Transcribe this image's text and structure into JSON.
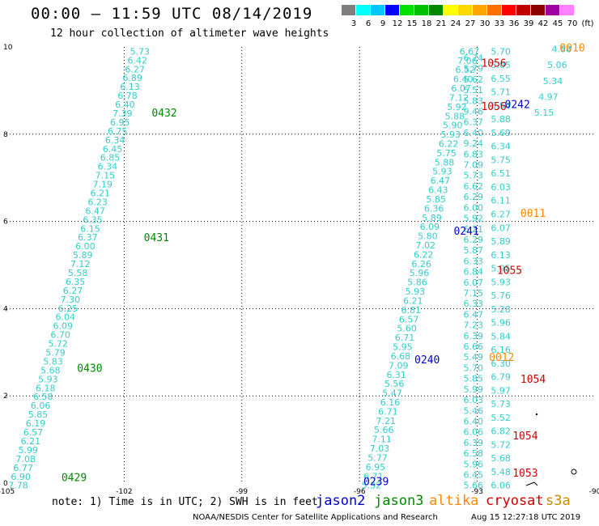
{
  "header": {
    "title": "00:00 – 11:59 UTC 08/14/2019",
    "subtitle": "12 hour collection of altimeter wave heights"
  },
  "legend": {
    "unit": "(ft)",
    "bins": [
      {
        "label": "3",
        "color": "#7f7f7f"
      },
      {
        "label": "6",
        "color": "#00ffff"
      },
      {
        "label": "9",
        "color": "#00c8ff"
      },
      {
        "label": "12",
        "color": "#0000ff"
      },
      {
        "label": "15",
        "color": "#00e000"
      },
      {
        "label": "18",
        "color": "#00c000"
      },
      {
        "label": "21",
        "color": "#008800"
      },
      {
        "label": "24",
        "color": "#ffff00"
      },
      {
        "label": "27",
        "color": "#ffd800"
      },
      {
        "label": "30",
        "color": "#ffa500"
      },
      {
        "label": "33",
        "color": "#ff7000"
      },
      {
        "label": "36",
        "color": "#ff0000"
      },
      {
        "label": "39",
        "color": "#c00000"
      },
      {
        "label": "42",
        "color": "#8b0000"
      },
      {
        "label": "45",
        "color": "#a000a0"
      },
      {
        "label": "70",
        "color": "#ff80ff"
      }
    ]
  },
  "map": {
    "lon_range": [
      -105,
      -90
    ],
    "lat_range": [
      0,
      10
    ],
    "x_ticks": [
      "-105",
      "-102",
      "-99",
      "-96",
      "-93",
      "-90"
    ],
    "y_ticks": [
      "10",
      "8",
      "6",
      "4",
      "2",
      "0"
    ],
    "colors": {
      "sample": "#33cccc",
      "jason2": "#0000cc",
      "jason3": "#008800",
      "altika": "#ff8800",
      "cryosat": "#cc0000"
    },
    "tracks": [
      {
        "satellite": "jason3",
        "values": [
          "5.73",
          "6.42",
          "6.27",
          "6.89",
          "6.13",
          "6.78",
          "6.40",
          "7.39",
          "6.95",
          "6.75",
          "6.34",
          "6.45",
          "6.85",
          "6.34",
          "7.15",
          "7.19",
          "6.21",
          "6.23",
          "6.47",
          "6.35",
          "6.15",
          "6.37",
          "6.00",
          "5.89",
          "7.12",
          "5.58",
          "6.35",
          "6.27",
          "7.30",
          "6.25",
          "6.04",
          "6.09",
          "6.70",
          "5.72",
          "5.79",
          "5.83",
          "5.68",
          "5.93",
          "6.18",
          "6.58",
          "6.06",
          "5.85",
          "6.19",
          "6.57",
          "6.21",
          "5.99",
          "7.08",
          "6.77",
          "6.90",
          "7.78"
        ]
      },
      {
        "satellite": "jason2",
        "values": [
          "6.67",
          "7.06",
          "6.52",
          "6.40",
          "6.07",
          "7.12",
          "5.92",
          "5.88",
          "5.90",
          "5.93",
          "6.22",
          "5.75",
          "5.88",
          "5.93",
          "6.47",
          "6.43",
          "5.85",
          "6.36",
          "5.89",
          "6.09",
          "5.80",
          "7.02",
          "6.22",
          "6.26",
          "5.96",
          "5.86",
          "5.93",
          "6.21",
          "6.81",
          "6.57",
          "5.60",
          "6.71",
          "5.95",
          "6.68",
          "7.09",
          "6.31",
          "5.56",
          "5.47",
          "6.16",
          "6.71",
          "7.21",
          "5.66",
          "7.11",
          "7.03",
          "5.77",
          "6.95",
          "6.71",
          "5.32"
        ]
      },
      {
        "satellite": "cryosat",
        "values": [
          "6.74",
          "5.79",
          "5.62",
          "5.51",
          "5.83",
          "9.46",
          "6.37",
          "6.40",
          "9.24",
          "6.83",
          "7.09",
          "5.73",
          "6.62",
          "6.29",
          "6.00",
          "5.92",
          "6.21",
          "6.29",
          "5.87",
          "6.33",
          "6.84",
          "6.07",
          "7.15",
          "6.33",
          "6.47",
          "7.23",
          "6.39",
          "6.66",
          "5.49",
          "5.70",
          "5.85",
          "5.99",
          "6.03",
          "5.46",
          "6.40",
          "6.06",
          "6.39",
          "6.58",
          "5.96",
          "6.45",
          "5.66"
        ]
      },
      {
        "satellite": "cryosat",
        "values": [
          "5.70",
          "5.05",
          "6.55",
          "5.71",
          "5.54",
          "5.88",
          "5.69",
          "6.34",
          "5.75",
          "6.51",
          "6.03",
          "6.11",
          "6.27",
          "6.07",
          "5.89",
          "6.13",
          "5.95",
          "5.93",
          "5.76",
          "5.28",
          "5.96",
          "5.84",
          "6.16",
          "6.30",
          "6.79",
          "5.97",
          "5.73",
          "5.52",
          "6.82",
          "5.72",
          "5.68",
          "5.48",
          "6.06"
        ]
      },
      {
        "satellite": "altika",
        "values": [
          "4.88",
          "5.06",
          "5.34",
          "4.97",
          "5.15"
        ]
      }
    ],
    "track_labels": [
      {
        "text": "0432",
        "sat": "jason3",
        "lon": -101.3,
        "lat": 8.4
      },
      {
        "text": "0431",
        "sat": "jason3",
        "lon": -101.5,
        "lat": 5.55
      },
      {
        "text": "0430",
        "sat": "jason3",
        "lon": -103.2,
        "lat": 2.55
      },
      {
        "text": "0429",
        "sat": "jason3",
        "lon": -103.6,
        "lat": 0.05
      },
      {
        "text": "0010",
        "sat": "altika",
        "lon": -90.9,
        "lat": 9.9
      },
      {
        "text": "1056",
        "sat": "cryosat",
        "lon": -92.9,
        "lat": 9.55
      },
      {
        "text": "0242",
        "sat": "jason2",
        "lon": -92.3,
        "lat": 8.6
      },
      {
        "text": "1056",
        "sat": "cryosat",
        "lon": -92.9,
        "lat": 8.55
      },
      {
        "text": "0011",
        "sat": "altika",
        "lon": -91.9,
        "lat": 6.1
      },
      {
        "text": "0241",
        "sat": "jason2",
        "lon": -93.6,
        "lat": 5.7
      },
      {
        "text": "1055",
        "sat": "cryosat",
        "lon": -92.5,
        "lat": 4.8
      },
      {
        "text": "0012",
        "sat": "altika",
        "lon": -92.7,
        "lat": 2.8
      },
      {
        "text": "0240",
        "sat": "jason2",
        "lon": -94.6,
        "lat": 2.75
      },
      {
        "text": "1054",
        "sat": "cryosat",
        "lon": -91.9,
        "lat": 2.3
      },
      {
        "text": "1054",
        "sat": "cryosat",
        "lon": -92.1,
        "lat": 1.0
      },
      {
        "text": "1053",
        "sat": "cryosat",
        "lon": -92.1,
        "lat": 0.15
      },
      {
        "text": "0239",
        "sat": "jason2",
        "lon": -95.9,
        "lat": -0.05
      }
    ]
  },
  "footer": {
    "note": "note: 1) Time is in UTC; 2) SWH is in feet",
    "satellites": {
      "jason2": "jason2",
      "jason3": "jason3",
      "altika": "altika",
      "cryosat": "cryosat",
      "s3a": "s3a"
    },
    "credit": "NOAA/NESDIS Center for Satellite Applications and Research",
    "timestamp": "Aug 15 12:27:18 UTC 2019"
  }
}
